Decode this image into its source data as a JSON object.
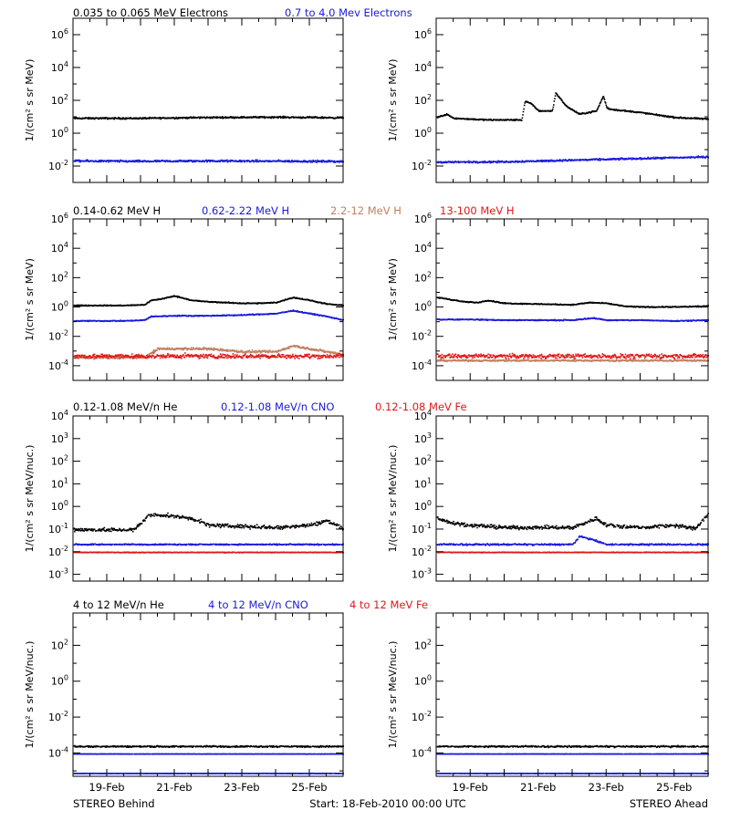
{
  "legends": [
    [
      {
        "text": "0.035 to 0.065 MeV Electrons",
        "color": "#000000"
      },
      {
        "text": "0.7 to 4.0 Mev Electrons",
        "color": "#1a1adc"
      }
    ],
    [
      {
        "text": "0.14-0.62 MeV H",
        "color": "#000000"
      },
      {
        "text": "0.62-2.22 MeV H",
        "color": "#1a1adc"
      },
      {
        "text": "2.2-12 MeV H",
        "color": "#c08060"
      },
      {
        "text": "13-100 MeV H",
        "color": "#e01818"
      }
    ],
    [
      {
        "text": "0.12-1.08 MeV/n He",
        "color": "#000000"
      },
      {
        "text": "0.12-1.08 MeV/n CNO",
        "color": "#1a1adc"
      },
      {
        "text": "0.12-1.08 MeV Fe",
        "color": "#e01818"
      }
    ],
    [
      {
        "text": "4 to 12 MeV/n He",
        "color": "#000000"
      },
      {
        "text": "4 to 12 MeV/n CNO",
        "color": "#1a1adc"
      },
      {
        "text": "4 to 12 MeV Fe",
        "color": "#e01818"
      }
    ]
  ],
  "footer": {
    "left": "STEREO Behind",
    "center": "Start: 18-Feb-2010 00:00 UTC",
    "right": "STEREO Ahead"
  },
  "chart_data": [
    {
      "type": "scatter",
      "row": 1,
      "spacecraft": "STEREO Behind",
      "ylabel": "1/(cm² s sr MeV)",
      "yscale": "log",
      "ylim_exp": [
        -3,
        7
      ],
      "ytick_exps": [
        -2,
        0,
        2,
        4,
        6
      ],
      "xlim_days": [
        0,
        8.0
      ],
      "xtick_labels": [
        "19-Feb",
        "21-Feb",
        "23-Feb",
        "25-Feb"
      ],
      "xtick_days": [
        1,
        3,
        5,
        7
      ],
      "series": [
        {
          "color": "#000000",
          "x": [
            0,
            2,
            4,
            6,
            8.0
          ],
          "y_exp": [
            0.95,
            0.95,
            1.0,
            1.02,
            0.98
          ],
          "jitter": 0.07
        },
        {
          "color": "#1a1adc",
          "x": [
            0,
            2,
            4,
            6,
            8.0
          ],
          "y_exp": [
            -1.65,
            -1.67,
            -1.65,
            -1.66,
            -1.68
          ],
          "jitter": 0.09
        }
      ]
    },
    {
      "type": "scatter",
      "row": 1,
      "spacecraft": "STEREO Ahead",
      "ylabel": "1/(cm² s sr MeV)",
      "yscale": "log",
      "ylim_exp": [
        -3,
        7
      ],
      "ytick_exps": [
        -2,
        0,
        2,
        4,
        6
      ],
      "xlim_days": [
        0,
        8.0
      ],
      "xtick_labels": [
        "19-Feb",
        "21-Feb",
        "23-Feb",
        "25-Feb"
      ],
      "xtick_days": [
        1,
        3,
        5,
        7
      ],
      "series": [
        {
          "color": "#000000",
          "x": [
            0,
            0.3,
            0.5,
            1.0,
            1.5,
            2.0,
            2.5,
            2.6,
            2.8,
            3.0,
            3.4,
            3.5,
            3.8,
            4.2,
            4.7,
            4.9,
            5.0,
            5.1,
            6.0,
            7.0,
            8.0
          ],
          "y_exp": [
            1.0,
            1.2,
            0.95,
            0.9,
            0.85,
            0.85,
            0.85,
            2.0,
            1.8,
            1.4,
            1.4,
            2.5,
            1.7,
            1.2,
            1.4,
            2.3,
            1.6,
            1.5,
            1.3,
            1.0,
            0.9
          ],
          "jitter": 0.06
        },
        {
          "color": "#1a1adc",
          "x": [
            0,
            2,
            4,
            6,
            8.0
          ],
          "y_exp": [
            -1.72,
            -1.7,
            -1.6,
            -1.5,
            -1.4
          ],
          "jitter": 0.08
        }
      ]
    },
    {
      "type": "scatter",
      "row": 2,
      "spacecraft": "STEREO Behind",
      "ylabel": "1/(cm² s sr MeV)",
      "yscale": "log",
      "ylim_exp": [
        -5,
        6
      ],
      "ytick_exps": [
        -4,
        -2,
        0,
        2,
        4,
        6
      ],
      "xlim_days": [
        0,
        8.0
      ],
      "xtick_labels": [
        "19-Feb",
        "21-Feb",
        "23-Feb",
        "25-Feb"
      ],
      "xtick_days": [
        1,
        3,
        5,
        7
      ],
      "series": [
        {
          "color": "#000000",
          "x": [
            0,
            1.5,
            2.1,
            2.3,
            2.6,
            3.0,
            3.5,
            4.0,
            5.0,
            5.5,
            6.0,
            6.5,
            7.0,
            7.5,
            8.0
          ],
          "y_exp": [
            0.15,
            0.15,
            0.2,
            0.5,
            0.6,
            0.8,
            0.5,
            0.4,
            0.3,
            0.3,
            0.35,
            0.7,
            0.5,
            0.25,
            0.15
          ],
          "jitter": 0.05
        },
        {
          "color": "#1a1adc",
          "x": [
            0,
            1.5,
            2.1,
            2.3,
            3.0,
            4.0,
            5.0,
            6.0,
            6.5,
            7.0,
            7.5,
            8.0
          ],
          "y_exp": [
            -0.9,
            -0.9,
            -0.85,
            -0.6,
            -0.55,
            -0.55,
            -0.5,
            -0.4,
            -0.2,
            -0.4,
            -0.6,
            -0.85
          ],
          "jitter": 0.05
        },
        {
          "color": "#c08060",
          "x": [
            0,
            2.1,
            2.5,
            4.0,
            5.0,
            6.0,
            6.5,
            7.0,
            8.0
          ],
          "y_exp": [
            -3.4,
            -3.4,
            -2.8,
            -2.8,
            -3.0,
            -3.0,
            -2.6,
            -2.8,
            -3.2
          ],
          "jitter": 0.12
        },
        {
          "color": "#e01818",
          "x": [
            0,
            8.0
          ],
          "y_exp": [
            -3.3,
            -3.3
          ],
          "jitter": 0.22
        }
      ]
    },
    {
      "type": "scatter",
      "row": 2,
      "spacecraft": "STEREO Ahead",
      "ylabel": "1/(cm² s sr MeV)",
      "yscale": "log",
      "ylim_exp": [
        -5,
        6
      ],
      "ytick_exps": [
        -4,
        -2,
        0,
        2,
        4,
        6
      ],
      "xlim_days": [
        0,
        8.0
      ],
      "xtick_labels": [
        "19-Feb",
        "21-Feb",
        "23-Feb",
        "25-Feb"
      ],
      "xtick_days": [
        1,
        3,
        5,
        7
      ],
      "series": [
        {
          "color": "#000000",
          "x": [
            0,
            0.3,
            0.8,
            1.2,
            1.5,
            2.0,
            3.0,
            4.0,
            4.5,
            5.0,
            5.5,
            6.0,
            7.0,
            8.0
          ],
          "y_exp": [
            0.7,
            0.6,
            0.4,
            0.35,
            0.5,
            0.3,
            0.25,
            0.2,
            0.35,
            0.3,
            0.1,
            0.05,
            0.05,
            0.1
          ],
          "jitter": 0.05
        },
        {
          "color": "#1a1adc",
          "x": [
            0,
            1.0,
            2.0,
            4.0,
            4.6,
            5.0,
            6.0,
            7.0,
            8.0
          ],
          "y_exp": [
            -0.8,
            -0.8,
            -0.85,
            -0.85,
            -0.7,
            -0.85,
            -0.85,
            -0.9,
            -0.85
          ],
          "jitter": 0.05
        },
        {
          "color": "#c08060",
          "x": [
            0,
            8.0
          ],
          "y_exp": [
            -3.6,
            -3.6
          ],
          "jitter": 0.08
        },
        {
          "color": "#e01818",
          "x": [
            0,
            8.0
          ],
          "y_exp": [
            -3.3,
            -3.3
          ],
          "jitter": 0.22
        }
      ]
    },
    {
      "type": "scatter",
      "row": 3,
      "spacecraft": "STEREO Behind",
      "ylabel": "1/(cm² s sr MeV/nuc.)",
      "yscale": "log",
      "ylim_exp": [
        -3.3,
        4
      ],
      "ytick_exps": [
        -3,
        -2,
        -1,
        0,
        1,
        2,
        3,
        4
      ],
      "xlim_days": [
        0,
        8.0
      ],
      "xtick_labels": [
        "19-Feb",
        "21-Feb",
        "23-Feb",
        "25-Feb"
      ],
      "xtick_days": [
        1,
        3,
        5,
        7
      ],
      "series": [
        {
          "color": "#000000",
          "x": [
            0,
            1.8,
            2.0,
            2.2,
            2.5,
            3.0,
            3.5,
            4.0,
            5.0,
            6.0,
            7.0,
            7.5,
            8.0
          ],
          "y_exp": [
            -1.0,
            -1.0,
            -0.7,
            -0.4,
            -0.35,
            -0.4,
            -0.5,
            -0.8,
            -0.85,
            -0.9,
            -0.8,
            -0.6,
            -0.95
          ],
          "jitter": 0.12
        },
        {
          "color": "#1a1adc",
          "x": [
            0,
            8.0
          ],
          "y_exp": [
            -1.65,
            -1.65
          ],
          "jitter": 0.04
        },
        {
          "color": "#e01818",
          "x": [
            0,
            8.0
          ],
          "y_exp": [
            -2.0,
            -2.0
          ],
          "jitter": 0.02
        }
      ]
    },
    {
      "type": "scatter",
      "row": 3,
      "spacecraft": "STEREO Ahead",
      "ylabel": "1/(cm² s sr MeV/nuc.)",
      "yscale": "log",
      "ylim_exp": [
        -3.3,
        4
      ],
      "ytick_exps": [
        -3,
        -2,
        -1,
        0,
        1,
        2,
        3,
        4
      ],
      "xlim_days": [
        0,
        8.0
      ],
      "xtick_labels": [
        "19-Feb",
        "21-Feb",
        "23-Feb",
        "25-Feb"
      ],
      "xtick_days": [
        1,
        3,
        5,
        7
      ],
      "series": [
        {
          "color": "#000000",
          "x": [
            0,
            0.5,
            1.0,
            2.0,
            3.0,
            4.0,
            4.7,
            5.0,
            6.0,
            7.0,
            7.6,
            8.0
          ],
          "y_exp": [
            -0.5,
            -0.7,
            -0.8,
            -0.9,
            -0.9,
            -0.9,
            -0.5,
            -0.8,
            -0.9,
            -0.8,
            -0.95,
            -0.3
          ],
          "jitter": 0.12
        },
        {
          "color": "#1a1adc",
          "x": [
            0,
            4.0,
            4.2,
            4.5,
            5.0,
            8.0
          ],
          "y_exp": [
            -1.65,
            -1.65,
            -1.3,
            -1.4,
            -1.65,
            -1.65
          ],
          "jitter": 0.05
        },
        {
          "color": "#e01818",
          "x": [
            0,
            8.0
          ],
          "y_exp": [
            -2.0,
            -2.0
          ],
          "jitter": 0.02
        }
      ]
    },
    {
      "type": "scatter",
      "row": 4,
      "spacecraft": "STEREO Behind",
      "ylabel": "1/(cm² s sr MeV/nuc.)",
      "yscale": "log",
      "ylim_exp": [
        -5.3,
        3.8
      ],
      "ytick_exps": [
        -4,
        -2,
        0,
        2
      ],
      "xlim_days": [
        0,
        8.0
      ],
      "xtick_labels": [
        "19-Feb",
        "21-Feb",
        "23-Feb",
        "25-Feb"
      ],
      "xtick_days": [
        1,
        3,
        5,
        7
      ],
      "series": [
        {
          "color": "#000000",
          "x": [
            0,
            8.0
          ],
          "y_exp": [
            -3.6,
            -3.6
          ],
          "jitter": 0.06
        },
        {
          "color": "#1a1adc",
          "x": [
            0,
            8.0
          ],
          "y_exp": [
            -4.02,
            -4.02
          ],
          "jitter": 0.01
        },
        {
          "color": "#1a1adc",
          "x": [
            0,
            8.0
          ],
          "y_exp": [
            -5.1,
            -5.1
          ],
          "jitter": 0.01
        }
      ]
    },
    {
      "type": "scatter",
      "row": 4,
      "spacecraft": "STEREO Ahead",
      "ylabel": "1/(cm² s sr MeV/nuc.)",
      "yscale": "log",
      "ylim_exp": [
        -5.3,
        3.8
      ],
      "ytick_exps": [
        -4,
        -2,
        0,
        2
      ],
      "xlim_days": [
        0,
        8.0
      ],
      "xtick_labels": [
        "19-Feb",
        "21-Feb",
        "23-Feb",
        "25-Feb"
      ],
      "xtick_days": [
        1,
        3,
        5,
        7
      ],
      "series": [
        {
          "color": "#000000",
          "x": [
            0,
            8.0
          ],
          "y_exp": [
            -3.6,
            -3.6
          ],
          "jitter": 0.06
        },
        {
          "color": "#1a1adc",
          "x": [
            0,
            8.0
          ],
          "y_exp": [
            -4.02,
            -4.02
          ],
          "jitter": 0.01
        },
        {
          "color": "#1a1adc",
          "x": [
            0,
            8.0
          ],
          "y_exp": [
            -5.1,
            -5.1
          ],
          "jitter": 0.01
        }
      ]
    }
  ]
}
